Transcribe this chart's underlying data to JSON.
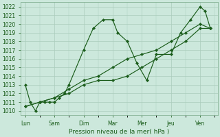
{
  "title": "",
  "xlabel": "Pression niveau de la mer( hPa )",
  "bg_color": "#cce8dc",
  "grid_color": "#aaccbb",
  "line_color": "#1a5c1a",
  "marker_color": "#1a5c1a",
  "ylim": [
    1009.5,
    1022.5
  ],
  "yticks": [
    1010,
    1011,
    1012,
    1013,
    1014,
    1015,
    1016,
    1017,
    1018,
    1019,
    1020,
    1021,
    1022
  ],
  "x_labels": [
    "Lun",
    "Sam",
    "Dim",
    "Mar",
    "Mer",
    "Jeu",
    "Ven"
  ],
  "x_positions": [
    0,
    1,
    2,
    3,
    4,
    5,
    6
  ],
  "xlim": [
    -0.15,
    6.6
  ],
  "s1_x": [
    0,
    0.17,
    0.35,
    0.5,
    0.67,
    0.84,
    1.0,
    1.17,
    1.35,
    1.5,
    2.0,
    2.33,
    2.67,
    3.0,
    3.17,
    3.5,
    3.83,
    4.17,
    4.5,
    5.0,
    5.33,
    5.67,
    6.0,
    6.17,
    6.35
  ],
  "s1_y": [
    1013.0,
    1011.0,
    1010.0,
    1011.0,
    1011.0,
    1011.0,
    1011.0,
    1011.5,
    1012.0,
    1013.0,
    1017.0,
    1019.5,
    1020.5,
    1020.5,
    1019.0,
    1018.0,
    1015.5,
    1013.5,
    1016.5,
    1016.5,
    1019.0,
    1020.5,
    1022.0,
    1021.5,
    1019.5
  ],
  "s2_x": [
    0,
    0.5,
    1.0,
    1.5,
    2.0,
    2.5,
    3.0,
    3.5,
    4.0,
    4.5,
    5.0,
    5.5,
    6.0,
    6.35
  ],
  "s2_y": [
    1010.5,
    1011.0,
    1011.5,
    1012.0,
    1013.0,
    1013.5,
    1013.5,
    1014.0,
    1015.0,
    1016.0,
    1017.0,
    1018.0,
    1019.5,
    1019.5
  ],
  "s3_x": [
    0,
    0.5,
    1.0,
    1.5,
    2.0,
    2.5,
    3.0,
    3.5,
    4.0,
    4.5,
    5.0,
    5.5,
    6.0,
    6.35
  ],
  "s3_y": [
    1010.5,
    1011.0,
    1011.5,
    1012.5,
    1013.5,
    1014.0,
    1015.0,
    1016.0,
    1016.5,
    1017.0,
    1018.0,
    1019.0,
    1020.0,
    1019.5
  ]
}
